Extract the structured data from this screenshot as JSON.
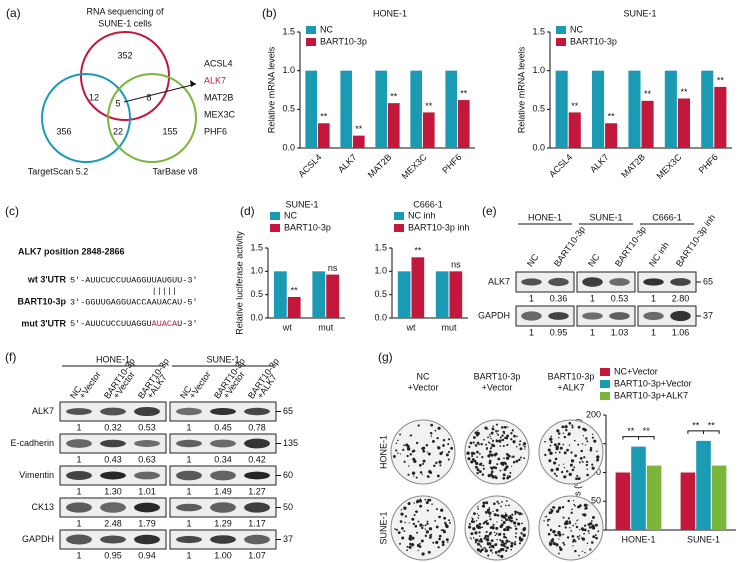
{
  "panel_labels": [
    "(a)",
    "(b)",
    "(c)",
    "(d)",
    "(e)",
    "(f)",
    "(g)"
  ],
  "venn": {
    "title_lines": [
      "RNA sequencing of",
      "SUNE-1 cells"
    ],
    "sets": [
      "TargetScan 5.2",
      "TarBase v8"
    ],
    "regions": {
      "rna_only": 352,
      "rna_ts": 12,
      "center": 5,
      "rna_tb": 8,
      "ts_only": 356,
      "ts_tb": 22,
      "tb_only": 155
    },
    "genes": [
      "ACSL4",
      "ALK7",
      "MAT2B",
      "MEX3C",
      "PHF6"
    ]
  },
  "sequence": {
    "title": "ALK7 position 2848-2866",
    "rows": [
      {
        "label": "wt 3'UTR",
        "seq": "5'-AUUCUCCUUAGGUUAUGUU-3'"
      },
      {
        "label": "BART10-3p",
        "seq": "3'-GGUUGAGGUACCAAUACAU-5'"
      },
      {
        "label": "mut 3'UTR",
        "seq_parts": [
          "5'-AUUCUCCUUAGGU",
          "AUACA",
          "U-3'"
        ]
      }
    ]
  },
  "blot_e": {
    "groups": [
      "HONE-1",
      "SUNE-1",
      "C666-1"
    ],
    "lanes": [
      "NC",
      "BART10-3p",
      "NC",
      "BART10-3p",
      "NC inh",
      "BART10-3p inh"
    ],
    "rows": [
      {
        "name": "ALK7",
        "marker": "65",
        "values": [
          "1",
          "0.36",
          "1",
          "0.53",
          "1",
          "2.80"
        ]
      },
      {
        "name": "GAPDH",
        "marker": "37",
        "values": [
          "1",
          "0.95",
          "1",
          "1.03",
          "1",
          "1.06"
        ]
      }
    ]
  },
  "blot_f": {
    "groups": [
      "HONE-1",
      "SUNE-1"
    ],
    "lanes": [
      [
        "NC",
        "+Vector"
      ],
      [
        "BART10-3p",
        "+Vector"
      ],
      [
        "BART10-3p",
        "+ALK7"
      ],
      [
        "NC",
        "+Vector"
      ],
      [
        "BART10-3p",
        "+Vector"
      ],
      [
        "BART10-3p",
        "+ALK7"
      ]
    ],
    "rows": [
      {
        "name": "ALK7",
        "marker": "65",
        "values": [
          "1",
          "0.32",
          "0.53",
          "1",
          "0.45",
          "0.78"
        ]
      },
      {
        "name": "E-cadherin",
        "marker": "135",
        "values": [
          "1",
          "0.43",
          "0.63",
          "1",
          "0.34",
          "0.42"
        ]
      },
      {
        "name": "Vimentin",
        "marker": "60",
        "values": [
          "1",
          "1.30",
          "1.01",
          "1",
          "1.49",
          "1.27"
        ]
      },
      {
        "name": "CK13",
        "marker": "50",
        "values": [
          "1",
          "2.48",
          "1.79",
          "1",
          "1.29",
          "1.17"
        ]
      },
      {
        "name": "GAPDH",
        "marker": "37",
        "values": [
          "1",
          "0.95",
          "0.94",
          "1",
          "1.00",
          "1.07"
        ]
      }
    ]
  },
  "colony": {
    "columns": [
      [
        "NC",
        "+Vector"
      ],
      [
        "BART10-3p",
        "+Vector"
      ],
      [
        "BART10-3p",
        "+ALK7"
      ]
    ],
    "rows": [
      "HONE-1",
      "SUNE-1"
    ]
  },
  "chart_data": [
    {
      "type": "bar",
      "title": "HONE-1",
      "y_label": "Relative mRNA levels",
      "categories": [
        "ACSL4",
        "ALK7",
        "MAT2B",
        "MEX3C",
        "PHF6"
      ],
      "series": [
        {
          "name": "NC",
          "color": "#1b9ab3",
          "values": [
            1,
            1,
            1,
            1,
            1
          ]
        },
        {
          "name": "BART10-3p",
          "color": "#c3173c",
          "values": [
            0.32,
            0.16,
            0.58,
            0.46,
            0.62
          ],
          "significance": [
            "**",
            "**",
            "**",
            "**",
            "**"
          ]
        }
      ],
      "ylim": [
        0,
        1.5
      ],
      "yticks": [
        {
          "value": 0,
          "label": "0.0"
        },
        {
          "value": 0.5,
          "label": "0.5"
        },
        {
          "value": 1,
          "label": "1.0"
        },
        {
          "value": 1.5,
          "label": "1.5"
        }
      ]
    },
    {
      "type": "bar",
      "title": "SUNE-1",
      "y_label": "Relative mRNA levels",
      "categories": [
        "ACSL4",
        "ALK7",
        "MAT2B",
        "MEX3C",
        "PHF6"
      ],
      "series": [
        {
          "name": "NC",
          "color": "#1b9ab3",
          "values": [
            1,
            1,
            1,
            1,
            1
          ]
        },
        {
          "name": "BART10-3p",
          "color": "#c3173c",
          "values": [
            0.46,
            0.32,
            0.61,
            0.64,
            0.79
          ],
          "significance": [
            "**",
            "**",
            "**",
            "**",
            "**"
          ]
        }
      ],
      "ylim": [
        0,
        1.5
      ],
      "yticks": [
        {
          "value": 0,
          "label": "0.0"
        },
        {
          "value": 0.5,
          "label": "0.5"
        },
        {
          "value": 1,
          "label": "1.0"
        },
        {
          "value": 1.5,
          "label": "1.5"
        }
      ]
    },
    {
      "type": "bar",
      "title": "SUNE-1",
      "y_label": "Relative luciferase activity",
      "categories": [
        "wt",
        "mut"
      ],
      "series": [
        {
          "name": "NC",
          "color": "#1b9ab3",
          "values": [
            1,
            1
          ]
        },
        {
          "name": "BART10-3p",
          "color": "#c3173c",
          "values": [
            0.45,
            0.93
          ],
          "significance": [
            "**",
            "ns"
          ]
        }
      ],
      "ylim": [
        0,
        1.5
      ],
      "yticks": [
        {
          "value": 0,
          "label": "0.0"
        },
        {
          "value": 0.5,
          "label": "0.5"
        },
        {
          "value": 1,
          "label": "1.0"
        },
        {
          "value": 1.5,
          "label": "1.5"
        }
      ]
    },
    {
      "type": "bar",
      "title": "C666-1",
      "categories": [
        "wt",
        "mut"
      ],
      "series": [
        {
          "name": "NC inh",
          "color": "#1b9ab3",
          "values": [
            1,
            1
          ]
        },
        {
          "name": "BART10-3p inh",
          "color": "#c3173c",
          "values": [
            1.3,
            1.0
          ],
          "significance": [
            "**",
            "ns"
          ]
        }
      ],
      "ylim": [
        0,
        1.5
      ],
      "yticks": [
        {
          "value": 0,
          "label": "0.0"
        },
        {
          "value": 0.5,
          "label": "0.5"
        },
        {
          "value": 1,
          "label": "1.0"
        },
        {
          "value": 1.5,
          "label": "1.5"
        }
      ]
    },
    {
      "type": "bar",
      "y_label": "Colonies (% of NC+Vector)",
      "categories": [
        "HONE-1",
        "SUNE-1"
      ],
      "series": [
        {
          "name": "NC+Vector",
          "color": "#c3173c",
          "values": [
            100,
            100
          ]
        },
        {
          "name": "BART10-3p+Vector",
          "color": "#1b9ab3",
          "values": [
            145,
            155
          ]
        },
        {
          "name": "BART10-3p+ALK7",
          "color": "#7ab63c",
          "values": [
            112,
            112
          ]
        }
      ],
      "annotations": [
        "**",
        "**",
        "**",
        "**"
      ],
      "ylim": [
        0,
        200
      ],
      "yticks": [
        0,
        50,
        100,
        150,
        200
      ]
    }
  ]
}
